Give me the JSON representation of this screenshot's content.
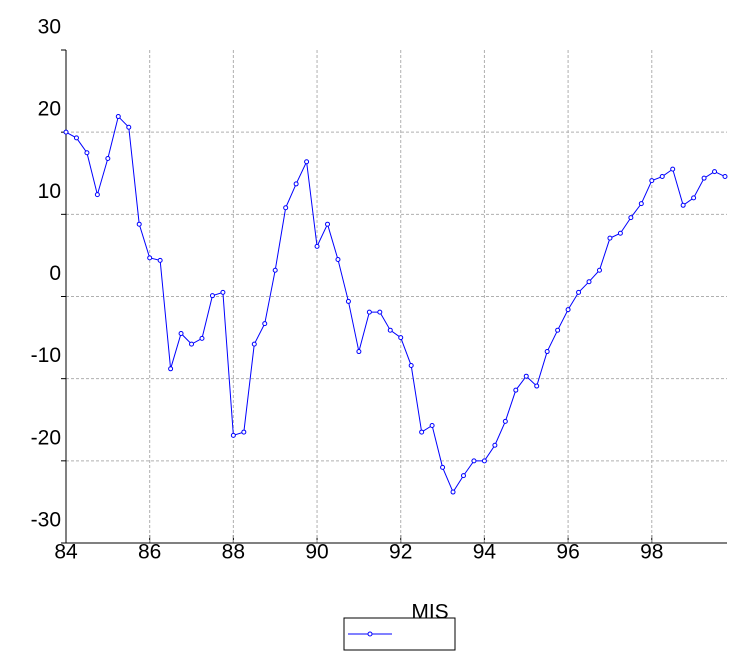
{
  "chart_data": {
    "type": "line",
    "x": [
      84,
      84.25,
      84.5,
      84.75,
      85,
      85.25,
      85.5,
      85.75,
      86,
      86.25,
      86.5,
      86.75,
      87,
      87.25,
      87.5,
      87.75,
      88,
      88.25,
      88.5,
      88.75,
      89,
      89.25,
      89.5,
      89.75,
      90,
      90.25,
      90.5,
      90.75,
      91,
      91.25,
      91.5,
      91.75,
      92,
      92.25,
      92.5,
      92.75,
      93,
      93.25,
      93.5,
      93.75,
      94,
      94.25,
      94.5,
      94.75,
      95,
      95.25,
      95.5,
      95.75,
      96,
      96.25,
      96.5,
      96.75,
      97,
      97.25,
      97.5,
      97.75,
      98,
      98.25,
      98.5,
      98.75,
      99,
      99.25,
      99.5,
      99.75
    ],
    "series": [
      {
        "name": "MIS",
        "color": "#0000ff",
        "values": [
          20.0,
          19.3,
          17.5,
          12.4,
          16.8,
          21.9,
          20.6,
          8.8,
          4.7,
          4.4,
          -8.8,
          -4.5,
          -5.8,
          -5.1,
          0.1,
          0.5,
          -16.9,
          -16.5,
          -5.8,
          -3.3,
          3.2,
          10.8,
          13.7,
          16.4,
          6.1,
          8.8,
          4.5,
          -0.6,
          -6.7,
          -1.9,
          -1.9,
          -4.1,
          -5.0,
          -8.4,
          -16.5,
          -15.7,
          -20.8,
          -23.8,
          -21.8,
          -20.0,
          -20.0,
          -18.1,
          -15.2,
          -11.4,
          -9.7,
          -10.9,
          -6.7,
          -4.1,
          -1.6,
          0.5,
          1.8,
          3.2,
          7.1,
          7.7,
          9.6,
          11.3,
          14.1,
          14.6,
          15.5,
          11.1,
          12.0,
          14.4,
          15.2,
          14.6
        ]
      }
    ],
    "xlim": [
      84,
      99.75
    ],
    "xticks": [
      84,
      86,
      88,
      90,
      92,
      94,
      96,
      98
    ],
    "ylim": [
      -30,
      30
    ],
    "yticks": [
      -30,
      -20,
      -10,
      0,
      10,
      20,
      30
    ],
    "grid": true,
    "legend": "bottom"
  }
}
